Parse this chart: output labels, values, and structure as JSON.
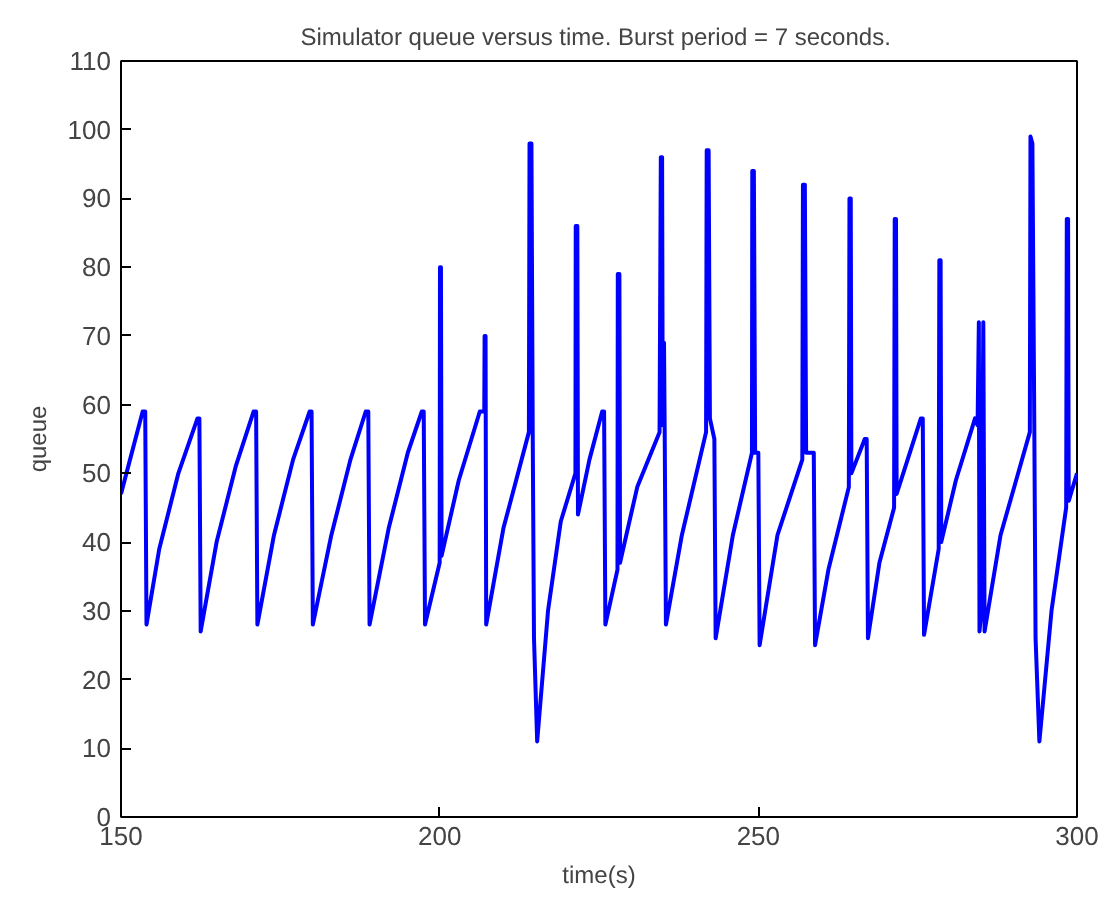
{
  "chart_data": {
    "type": "line",
    "title": "Simulator queue versus time.  Burst period = 7 seconds.",
    "xlabel": "time(s)",
    "ylabel": "queue",
    "xlim": [
      150,
      300
    ],
    "ylim": [
      0,
      110
    ],
    "xticks": [
      150,
      200,
      250,
      300
    ],
    "yticks": [
      0,
      10,
      20,
      30,
      40,
      50,
      60,
      70,
      80,
      90,
      100,
      110
    ],
    "grid": false,
    "line_style": "solid",
    "marker": "none",
    "series": [
      {
        "color": "#0000ff",
        "x": [
          150,
          153.4,
          153.8,
          154.0,
          156,
          159,
          162.0,
          162.3,
          162.5,
          165,
          168,
          170.8,
          171.2,
          171.4,
          174,
          177,
          179.6,
          179.9,
          180.1,
          183,
          186,
          188.4,
          188.8,
          189.0,
          192,
          195,
          197.2,
          197.5,
          197.7,
          200.0,
          200.05,
          200.2,
          200.3,
          203,
          206.3,
          207.0,
          207.05,
          207.2,
          207.3,
          210,
          214.0,
          214.1,
          214.4,
          214.6,
          214.8,
          215.3,
          217,
          219,
          221.3,
          221.35,
          221.6,
          221.7,
          223.5,
          225.5,
          225.8,
          226.0,
          227.9,
          227.95,
          228.2,
          228.3,
          231,
          234.5,
          234.7,
          234.9,
          235.0,
          235.2,
          235.3,
          235.5,
          238,
          241.8,
          241.9,
          242.2,
          242.4,
          243.1,
          243.3,
          246,
          249.0,
          249.05,
          249.3,
          249.5,
          250.0,
          250.2,
          253,
          256.9,
          257.0,
          257.3,
          257.5,
          258.7,
          258.9,
          261,
          264.2,
          264.3,
          264.5,
          264.6,
          266.7,
          267.0,
          267.2,
          269,
          271.3,
          271.4,
          271.6,
          271.7,
          275.5,
          275.8,
          276.0,
          278.3,
          278.4,
          278.6,
          278.7,
          281,
          284.0,
          284.4,
          284.6,
          284.7,
          285.0,
          285.3,
          285.5,
          288,
          292.6,
          292.7,
          293.0,
          293.3,
          293.5,
          294.1,
          296,
          298.3,
          298.4,
          298.6,
          298.7,
          300
        ],
        "values": [
          47,
          59,
          59,
          28,
          39,
          50,
          58,
          58,
          27,
          40,
          51,
          59,
          59,
          28,
          41,
          52,
          59,
          59,
          28,
          41,
          52,
          59,
          59,
          28,
          42,
          53,
          59,
          59,
          28,
          37,
          80,
          80,
          38,
          49,
          59,
          59,
          70,
          70,
          28,
          42,
          56,
          98,
          98,
          56,
          26,
          11,
          30,
          43,
          50,
          86,
          86,
          44,
          52,
          59,
          59,
          28,
          36,
          79,
          79,
          37,
          48,
          56,
          96,
          96,
          57,
          69,
          57,
          28,
          41,
          56,
          97,
          97,
          58,
          55,
          26,
          41,
          53,
          94,
          94,
          53,
          53,
          25,
          41,
          52,
          92,
          92,
          53,
          53,
          25,
          36,
          48,
          90,
          90,
          50,
          55,
          55,
          26,
          37,
          45,
          87,
          87,
          47,
          58,
          58,
          26.5,
          39,
          81,
          81,
          40,
          49,
          58,
          57,
          72,
          27,
          30,
          72,
          27,
          41,
          56,
          99,
          98,
          57,
          26,
          11,
          30,
          45,
          87,
          87,
          46,
          50
        ]
      }
    ]
  }
}
